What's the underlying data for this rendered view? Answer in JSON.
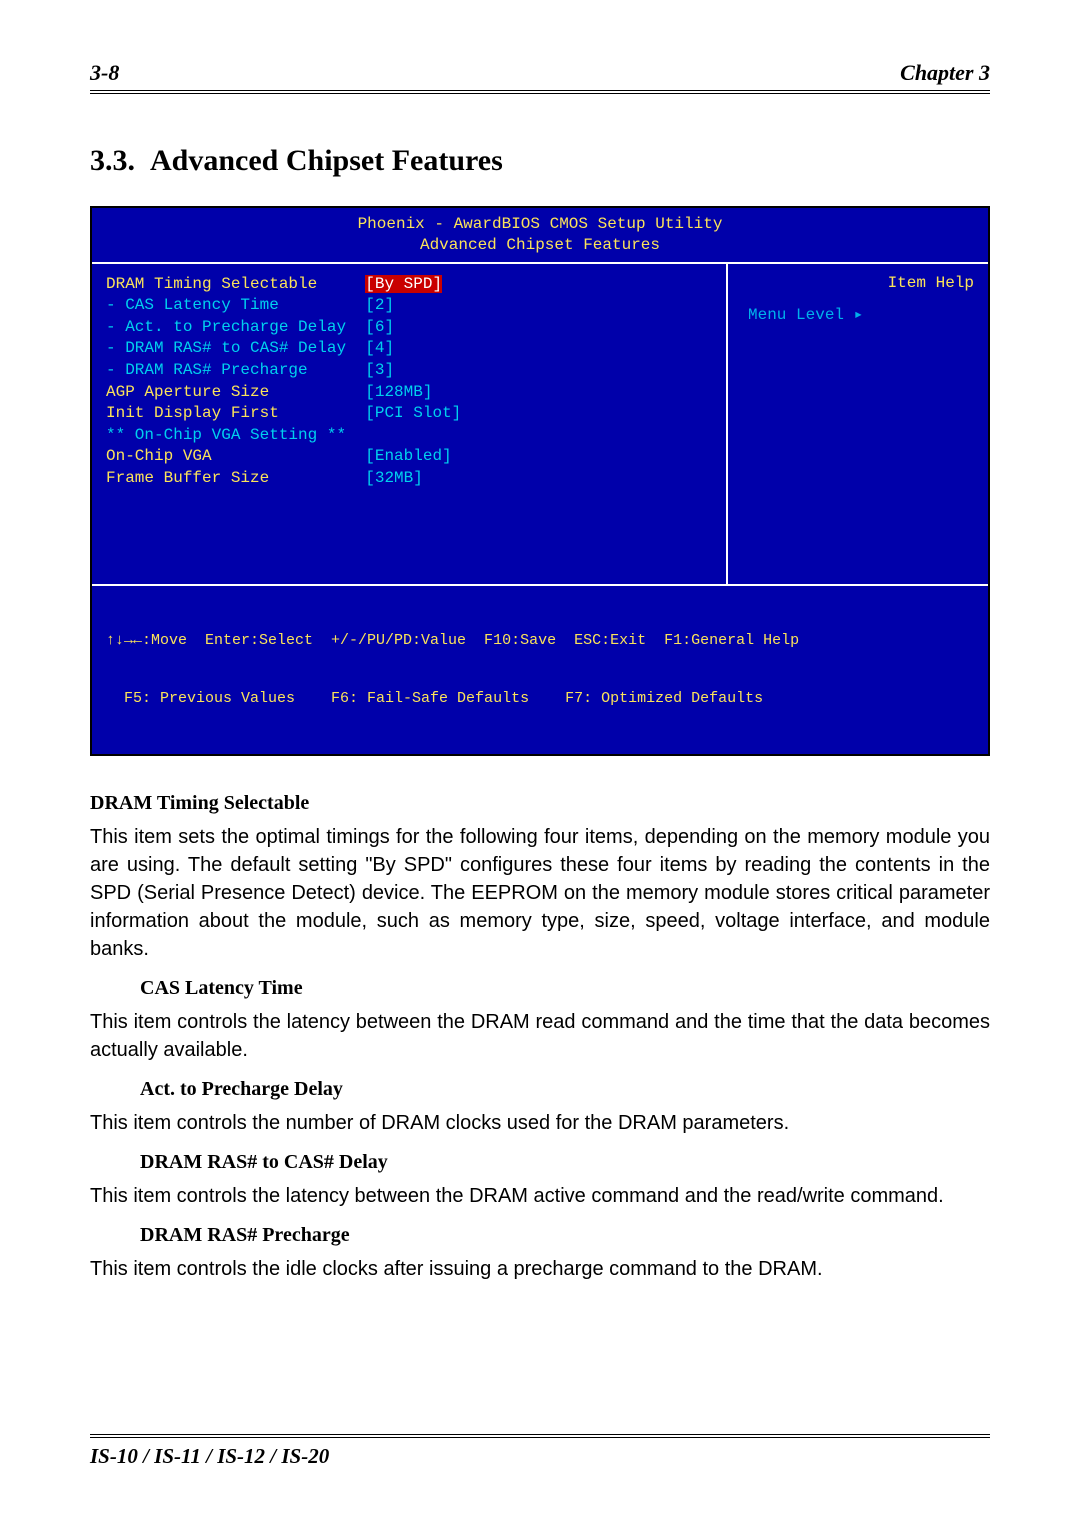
{
  "header": {
    "page_num": "3-8",
    "chapter": "Chapter 3"
  },
  "section": {
    "number": "3.3.",
    "title": "Advanced Chipset Features"
  },
  "bios": {
    "bg_color": "#0000aa",
    "text_color": "#ffffff",
    "hl_yellow": "#fbe35a",
    "hl_cyan": "#00d0ee",
    "hl_red_bg": "#c90000",
    "title1": "Phoenix - AwardBIOS CMOS Setup Utility",
    "title2": "Advanced Chipset Features",
    "help_label": "Item Help",
    "menu_level": "Menu Level   ▸",
    "rows": [
      {
        "label": "DRAM Timing Selectable     ",
        "val": "[By SPD]",
        "val_class": "red",
        "lbl_class": "yellow"
      },
      {
        "label": "- CAS Latency Time         ",
        "val": "[2]",
        "val_class": "cyan",
        "lbl_class": "cyan"
      },
      {
        "label": "- Act. to Precharge Delay  ",
        "val": "[6]",
        "val_class": "cyan",
        "lbl_class": "cyan"
      },
      {
        "label": "- DRAM RAS# to CAS# Delay  ",
        "val": "[4]",
        "val_class": "cyan",
        "lbl_class": "cyan"
      },
      {
        "label": "- DRAM RAS# Precharge      ",
        "val": "[3]",
        "val_class": "cyan",
        "lbl_class": "cyan"
      },
      {
        "label": "AGP Aperture Size          ",
        "val": "[128MB]",
        "val_class": "cyan",
        "lbl_class": "yellow"
      },
      {
        "label": "Init Display First         ",
        "val": "[PCI Slot]",
        "val_class": "cyan",
        "lbl_class": "yellow"
      },
      {
        "label": "",
        "val": "",
        "val_class": "",
        "lbl_class": ""
      },
      {
        "label": "** On-Chip VGA Setting **",
        "val": "",
        "val_class": "",
        "lbl_class": "cyan"
      },
      {
        "label": "On-Chip VGA                ",
        "val": "[Enabled]",
        "val_class": "cyan",
        "lbl_class": "yellow"
      },
      {
        "label": "Frame Buffer Size          ",
        "val": "[32MB]",
        "val_class": "cyan",
        "lbl_class": "yellow"
      }
    ],
    "footer1": "↑↓→←:Move  Enter:Select  +/-/PU/PD:Value  F10:Save  ESC:Exit  F1:General Help",
    "footer2": "  F5: Previous Values    F6: Fail-Safe Defaults    F7: Optimized Defaults"
  },
  "paragraphs": {
    "p1_title": "DRAM Timing Selectable",
    "p1_body": "This item sets the optimal timings for the following four items, depending on the memory module you are using. The default setting \"By SPD\" configures these four items by reading the contents in the SPD (Serial Presence Detect) device. The EEPROM on the memory module stores critical parameter information about the module, such as memory type, size, speed, voltage interface, and module banks.",
    "p2_title": "CAS Latency Time",
    "p2_body": "This item controls the latency between the DRAM read command and the time that the data becomes actually available.",
    "p3_title": "Act. to Precharge Delay",
    "p3_body": "This item controls the number of DRAM clocks used for the DRAM parameters.",
    "p4_title": "DRAM RAS# to CAS# Delay",
    "p4_body": "This item controls the latency between the DRAM active command and the read/write command.",
    "p5_title": "DRAM RAS# Precharge",
    "p5_body": "This item controls the idle clocks after issuing a precharge command to the DRAM."
  },
  "footer": "IS-10 / IS-11 / IS-12 / IS-20"
}
